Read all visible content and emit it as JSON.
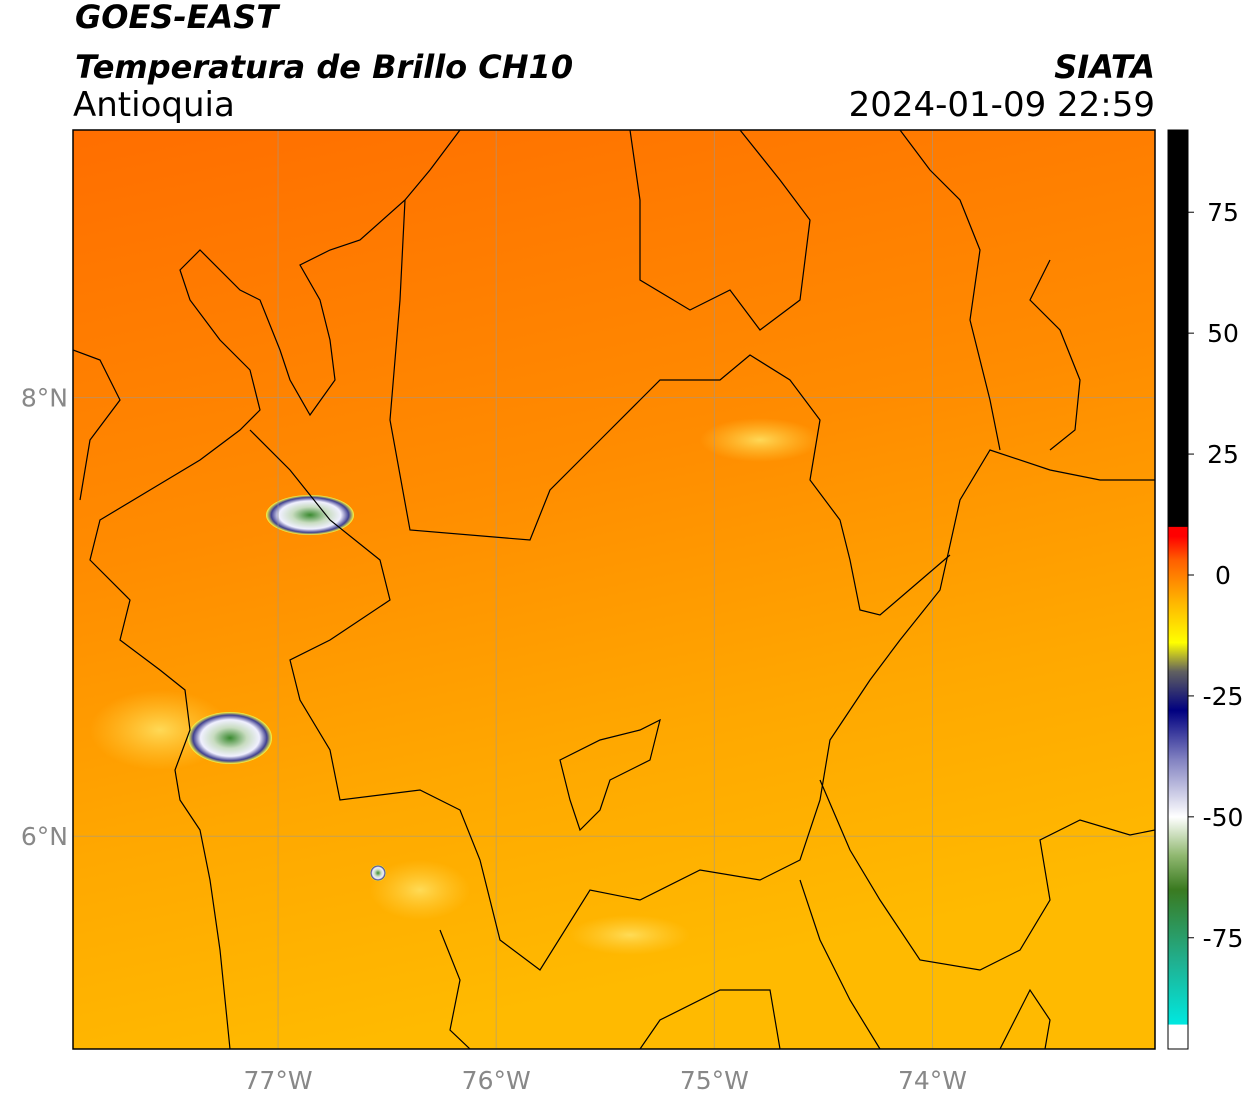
{
  "header": {
    "title": "GOES-EAST",
    "subtitle": "Temperatura de Brillo CH10",
    "region": "Antioquia",
    "source": "SIATA",
    "datetime": "2024-01-09 22:59"
  },
  "map": {
    "xlim": [
      -77.94,
      -72.98
    ],
    "ylim": [
      5.03,
      9.22
    ],
    "xticks": [
      {
        "value": -77,
        "label": "77°W"
      },
      {
        "value": -76,
        "label": "76°W"
      },
      {
        "value": -75,
        "label": "75°W"
      },
      {
        "value": -74,
        "label": "74°W"
      }
    ],
    "yticks": [
      {
        "value": 8,
        "label": "8°N"
      },
      {
        "value": 6,
        "label": "6°N"
      }
    ],
    "grid": true
  },
  "colorbar": {
    "lim": [
      -98,
      92
    ],
    "ticks": [
      75,
      50,
      25,
      0,
      -25,
      -50,
      -75
    ],
    "colormap": [
      {
        "value": -98,
        "color": "#ffffff"
      },
      {
        "value": -93,
        "color": "#ffffff"
      },
      {
        "value": -92.9,
        "color": "#00e8e0"
      },
      {
        "value": -80,
        "color": "#20b090"
      },
      {
        "value": -65,
        "color": "#3a7a20"
      },
      {
        "value": -58,
        "color": "#90b870"
      },
      {
        "value": -50,
        "color": "#ffffff"
      },
      {
        "value": -38,
        "color": "#8080c0"
      },
      {
        "value": -28,
        "color": "#000080"
      },
      {
        "value": -20,
        "color": "#606060"
      },
      {
        "value": -14,
        "color": "#ffff00"
      },
      {
        "value": -5,
        "color": "#ffb000"
      },
      {
        "value": 3,
        "color": "#ff6000"
      },
      {
        "value": 8,
        "color": "#ff0000"
      },
      {
        "value": 9.9,
        "color": "#ff0000"
      },
      {
        "value": 10,
        "color": "#000000"
      },
      {
        "value": 92,
        "color": "#000000"
      }
    ]
  }
}
